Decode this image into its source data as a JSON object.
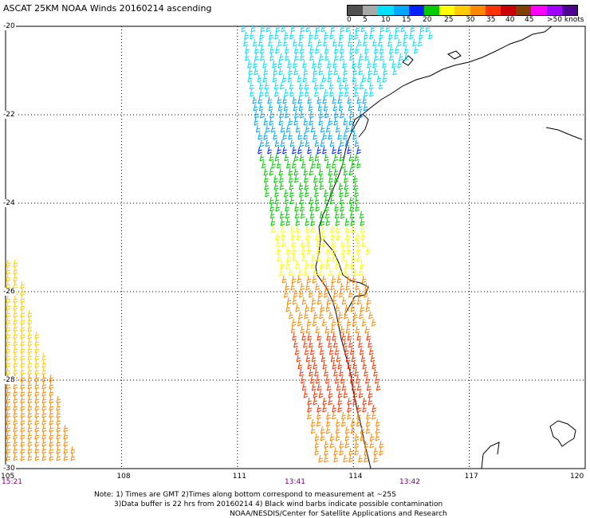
{
  "title": "ASCAT 25KM NOAA Winds 20160214 ascending",
  "legend": {
    "colors": [
      "#505050",
      "#a8a8a8",
      "#00e0ff",
      "#00a8ff",
      "#0020ff",
      "#00cc00",
      "#ffff00",
      "#ffcc00",
      "#ff8800",
      "#ff3300",
      "#cc0000",
      "#804000",
      "#ff00ff",
      "#a000ff",
      "#500090"
    ],
    "labels": [
      "0",
      "5",
      "10",
      "15",
      "20",
      "25",
      "30",
      "35",
      "40",
      "45",
      ">50 knots"
    ]
  },
  "map": {
    "lat_labels": [
      "-20",
      "-22",
      "-24",
      "-26",
      "-28",
      "-30"
    ],
    "lon_labels": [
      "105",
      "108",
      "111",
      "114",
      "117",
      "120"
    ],
    "time_labels": [
      "15:21",
      "13:41",
      "13:42"
    ],
    "lat_range": [
      -30,
      -20
    ],
    "lon_range": [
      105,
      120
    ],
    "grid": "dotted"
  },
  "notes": {
    "line1": "Note: 1) Times are GMT 2)Times along bottom correspond to measurement at ~25S",
    "line2": "3)Data buffer is 22 hrs from 20160214 4) Black wind barbs indicate possible contamination",
    "line3": "NOAA/NESDIS/Center for Satellite Applications and Research"
  }
}
